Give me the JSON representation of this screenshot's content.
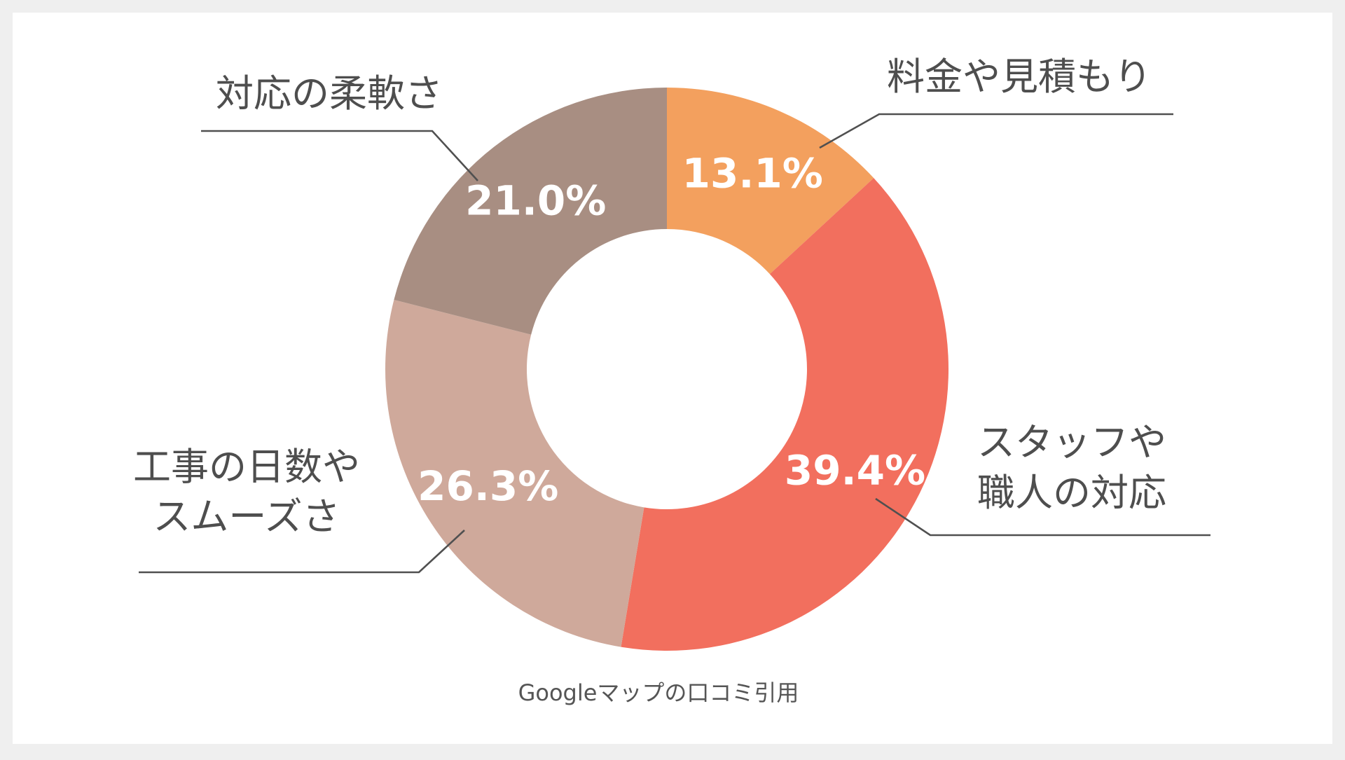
{
  "chart_data": {
    "type": "pie",
    "donut": true,
    "title": "",
    "source_note": "Googleマップの口コミ引用",
    "slices": [
      {
        "label_lines": [
          "料金や見積もり"
        ],
        "value": 13.1,
        "value_label": "13.1%",
        "color": "#f3a05e"
      },
      {
        "label_lines": [
          "スタッフや",
          "職人の対応"
        ],
        "value": 39.4,
        "value_label": "39.4%",
        "color": "#f26f5e"
      },
      {
        "label_lines": [
          "工事の日数や",
          "スムーズさ"
        ],
        "value": 26.3,
        "value_label": "26.3%",
        "color": "#cfa99b"
      },
      {
        "label_lines": [
          "対応の柔軟さ"
        ],
        "value": 21.0,
        "value_label": "21.0%",
        "color": "#a88e82"
      }
    ]
  },
  "colors": {
    "page_background": "#efefef",
    "card_background": "#ffffff",
    "label_text": "#4e4e4e",
    "leader_line": "#505050"
  }
}
